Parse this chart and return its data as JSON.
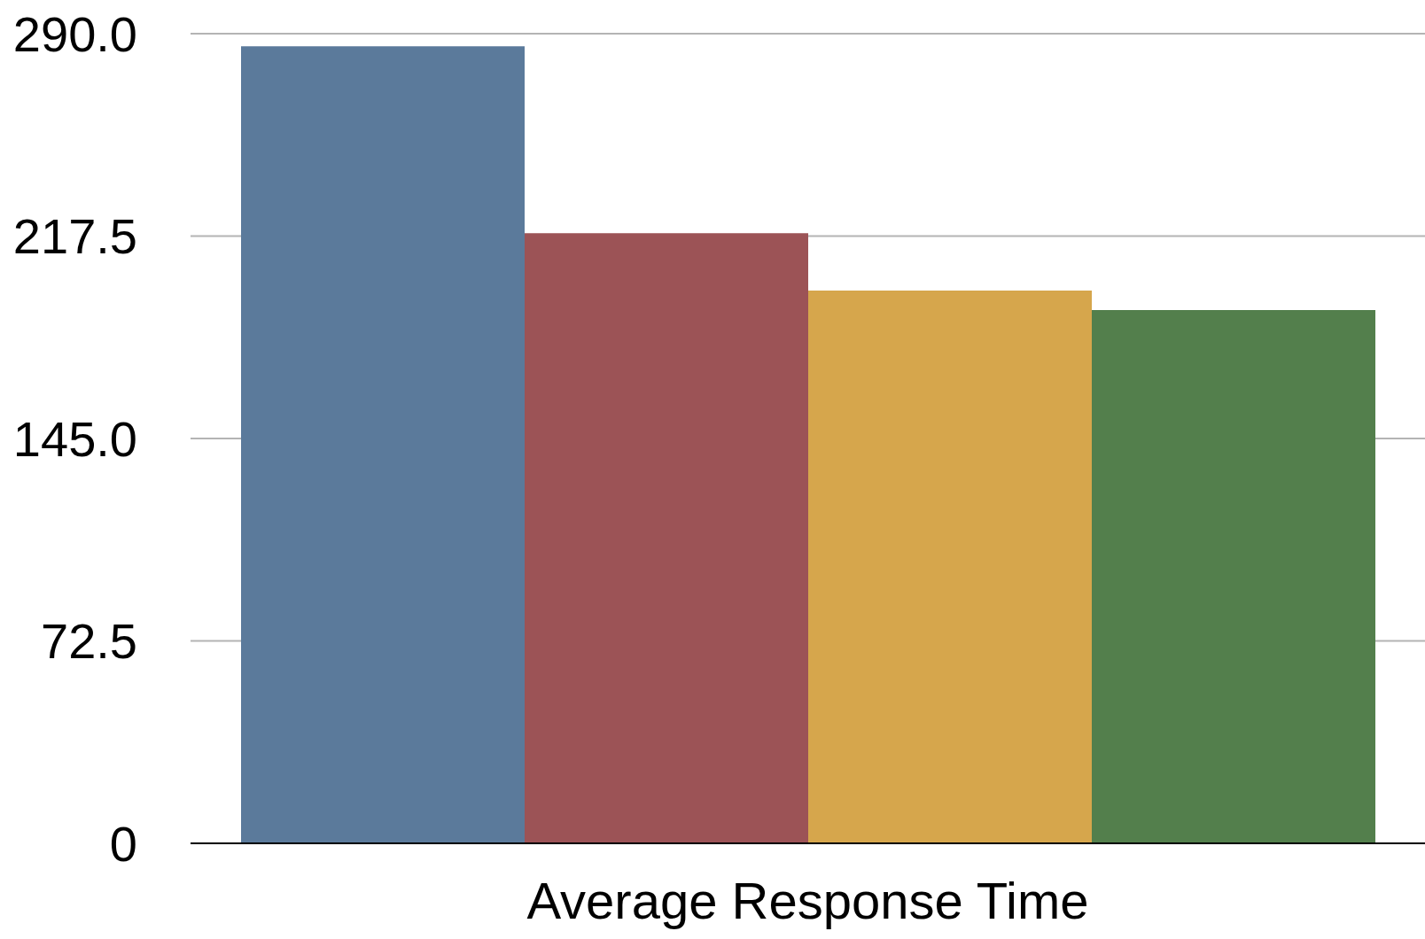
{
  "chart_data": {
    "type": "bar",
    "categories": [
      "Average Response Time"
    ],
    "series": [
      {
        "color": "#5b7a9b",
        "values": [
          285.5
        ]
      },
      {
        "color": "#9c5356",
        "values": [
          218.5
        ]
      },
      {
        "color": "#d6a64c",
        "values": [
          198
        ]
      },
      {
        "color": "#537f4c",
        "values": [
          191
        ]
      }
    ],
    "ylim": [
      0,
      290
    ],
    "yticks": [
      0,
      72.5,
      {
        "value": 145,
        "label": "145.0"
      },
      217.5,
      {
        "value": 290,
        "label": "290.0"
      }
    ],
    "grid": "y"
  }
}
